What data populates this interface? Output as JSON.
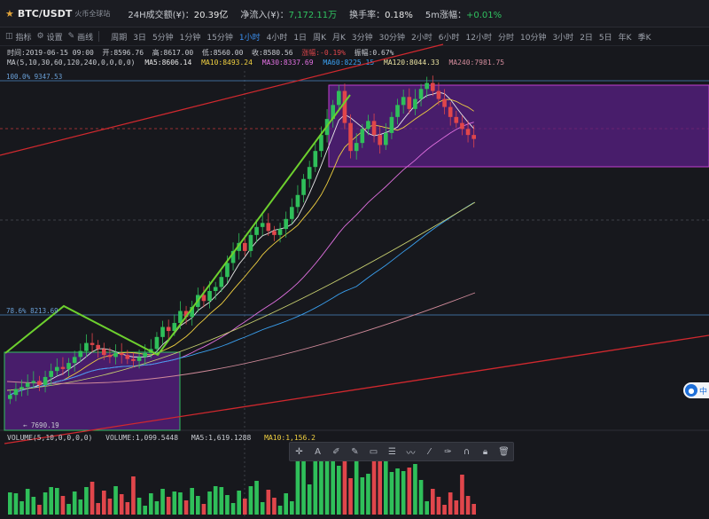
{
  "header": {
    "pair": "BTC/USDT",
    "site": "火币全球站",
    "vol24h_label": "24H成交额(¥)：",
    "vol24h_value": "20.39亿",
    "netflow_label": "净流入(¥)：",
    "netflow_value": "7,172.11万",
    "turnover_label": "换手率：",
    "turnover_value": "0.18%",
    "change5m_label": "5m涨幅：",
    "change5m_value": "+0.01%"
  },
  "toolbar": {
    "indicator": "指标",
    "settings": "设置",
    "draw": "画线",
    "period_label": "周期",
    "periods": [
      "3日",
      "5分钟",
      "1分钟",
      "15分钟",
      "1小时",
      "4小时",
      "1日",
      "周K",
      "月K",
      "3分钟",
      "30分钟",
      "2小时",
      "6小时",
      "12小时",
      "分时",
      "10分钟",
      "3小时",
      "2日",
      "5日",
      "年K",
      "季K"
    ],
    "active_period": "1小时"
  },
  "ohlc": {
    "time": "时间:2019-06-15 09:00",
    "open": "开:8596.76",
    "high": "高:8617.00",
    "low": "低:8560.00",
    "close": "收:8580.56",
    "change": "涨幅:-0.19%",
    "amplitude": "振幅:0.67%"
  },
  "ma_line": {
    "label": "MA(5,10,30,60,120,240,0,0,0,0)",
    "ma5": "MA5:8606.14",
    "ma10": "MA10:8493.24",
    "ma30": "MA30:8337.69",
    "ma60": "MA60:8225.15",
    "ma120": "MA120:8044.33",
    "ma240": "MA240:7981.75"
  },
  "fib": {
    "top": "100.0% 9347.53",
    "mid": "78.6% 8213.69"
  },
  "low_mark": "← 7690.19",
  "volume": {
    "label": "VOLUME(5,10,0,0,0,0)",
    "value": "VOLUME:1,099.5448",
    "ma5": "MA5:1,619.1288",
    "ma10": "MA10:1,156.2"
  },
  "badge": "中",
  "colors": {
    "up": "#2fbf5a",
    "down": "#e0464b",
    "ma5": "#e8e8e8",
    "ma10": "#f0d040",
    "ma30": "#e070e0",
    "ma60": "#3aa0f0",
    "ma120": "#c8d070",
    "ma240": "#d08a9a",
    "box": "#7a2fa8",
    "trend": "#c8242c",
    "green_line": "#6dd02e"
  },
  "chart_data": {
    "type": "candlestick",
    "symbol": "BTC/USDT",
    "interval": "1小时",
    "price_levels": [
      9347.53,
      8213.69,
      7690.19
    ],
    "last_candle": {
      "time": "2019-06-15 09:00",
      "open": 8596.76,
      "high": 8617.0,
      "low": 8560.0,
      "close": 8580.56
    },
    "moving_averages": {
      "MA5": 8606.14,
      "MA10": 8493.24,
      "MA30": 8337.69,
      "MA60": 8225.15,
      "MA120": 8044.33,
      "MA240": 7981.75
    },
    "close_series": [
      7760,
      7790,
      7800,
      7820,
      7830,
      7810,
      7850,
      7880,
      7900,
      7890,
      7920,
      7950,
      7980,
      8020,
      8010,
      7990,
      7960,
      7950,
      7970,
      7960,
      7940,
      7930,
      7950,
      7970,
      7990,
      8050,
      8100,
      8080,
      8120,
      8180,
      8150,
      8200,
      8260,
      8230,
      8280,
      8300,
      8350,
      8420,
      8480,
      8520,
      8480,
      8560,
      8600,
      8620,
      8580,
      8560,
      8590,
      8640,
      8700,
      8760,
      8840,
      8900,
      8980,
      9060,
      9140,
      9210,
      9280,
      9120,
      8980,
      9020,
      9090,
      9130,
      9060,
      9010,
      9070,
      9150,
      9210,
      9250,
      9190,
      9240,
      9290,
      9320,
      9280,
      9240,
      9200,
      9150,
      9120,
      9090,
      9060,
      9040
    ]
  }
}
